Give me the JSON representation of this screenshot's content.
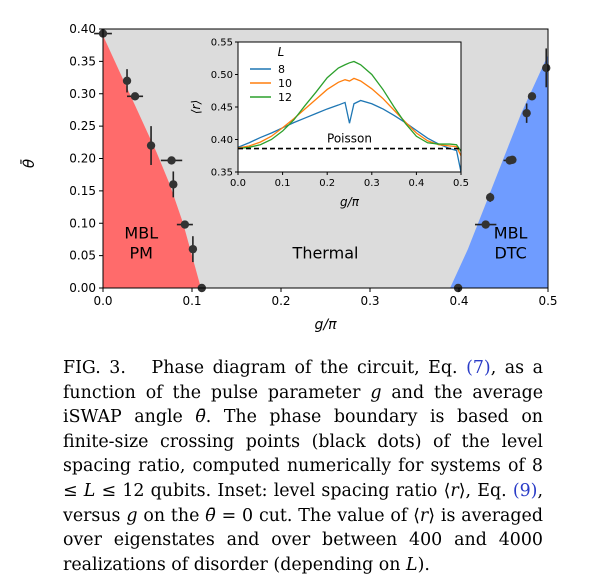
{
  "chart_data": [
    {
      "type": "scatter",
      "title": "",
      "xlabel": "g/π",
      "ylabel": "θ̄",
      "xlim": [
        0.0,
        0.5
      ],
      "ylim": [
        0.0,
        0.4
      ],
      "xticks": [
        "0.0",
        "0.1",
        "0.2",
        "0.3",
        "0.4",
        "0.5"
      ],
      "yticks": [
        "0.00",
        "0.05",
        "0.10",
        "0.15",
        "0.20",
        "0.25",
        "0.30",
        "0.35",
        "0.40"
      ],
      "background_color": "#dcdcdc",
      "regions": [
        {
          "name": "MBL PM",
          "label_lines": [
            "MBL",
            "PM"
          ],
          "color": "#ff6b6b"
        },
        {
          "name": "Thermal",
          "label_lines": [
            "Thermal"
          ],
          "color": "#dcdcdc"
        },
        {
          "name": "MBL DTC",
          "label_lines": [
            "MBL",
            "DTC"
          ],
          "color": "#6f9cff"
        }
      ],
      "pm_boundary": [
        [
          0.0,
          0.39
        ],
        [
          0.02,
          0.33
        ],
        [
          0.04,
          0.27
        ],
        [
          0.06,
          0.21
        ],
        [
          0.075,
          0.16
        ],
        [
          0.09,
          0.1
        ],
        [
          0.1,
          0.05
        ],
        [
          0.11,
          0.0
        ]
      ],
      "dtc_boundary": [
        [
          0.39,
          0.0
        ],
        [
          0.41,
          0.06
        ],
        [
          0.43,
          0.13
        ],
        [
          0.45,
          0.2
        ],
        [
          0.47,
          0.27
        ],
        [
          0.49,
          0.33
        ],
        [
          0.5,
          0.36
        ]
      ],
      "points": [
        {
          "x": 0.0,
          "y": 0.393,
          "xerr": 0.01,
          "yerr": 0.0
        },
        {
          "x": 0.027,
          "y": 0.32,
          "xerr": 0.0,
          "yerr": 0.018
        },
        {
          "x": 0.036,
          "y": 0.296,
          "xerr": 0.009,
          "yerr": 0.0
        },
        {
          "x": 0.054,
          "y": 0.22,
          "xerr": 0.0,
          "yerr": 0.03
        },
        {
          "x": 0.077,
          "y": 0.197,
          "xerr": 0.012,
          "yerr": 0.0
        },
        {
          "x": 0.079,
          "y": 0.16,
          "xerr": 0.0,
          "yerr": 0.02
        },
        {
          "x": 0.092,
          "y": 0.098,
          "xerr": 0.009,
          "yerr": 0.0
        },
        {
          "x": 0.101,
          "y": 0.06,
          "xerr": 0.0,
          "yerr": 0.02
        },
        {
          "x": 0.111,
          "y": 0.0,
          "xerr": 0.0,
          "yerr": 0.0
        },
        {
          "x": 0.399,
          "y": 0.0,
          "xerr": 0.0,
          "yerr": 0.0
        },
        {
          "x": 0.43,
          "y": 0.098,
          "xerr": 0.012,
          "yerr": 0.0
        },
        {
          "x": 0.435,
          "y": 0.14,
          "xerr": 0.0,
          "yerr": 0.007
        },
        {
          "x": 0.457,
          "y": 0.197,
          "xerr": 0.007,
          "yerr": 0.0
        },
        {
          "x": 0.46,
          "y": 0.198,
          "xerr": 0.0,
          "yerr": 0.0
        },
        {
          "x": 0.476,
          "y": 0.27,
          "xerr": 0.0,
          "yerr": 0.015
        },
        {
          "x": 0.482,
          "y": 0.296,
          "xerr": 0.0,
          "yerr": 0.0
        },
        {
          "x": 0.498,
          "y": 0.34,
          "xerr": 0.0,
          "yerr": 0.03
        }
      ]
    },
    {
      "type": "line",
      "title": "",
      "xlabel": "g/π",
      "ylabel": "⟨r⟩",
      "xlim": [
        0.0,
        0.5
      ],
      "ylim": [
        0.35,
        0.55
      ],
      "xticks": [
        "0.0",
        "0.1",
        "0.2",
        "0.3",
        "0.4",
        "0.5"
      ],
      "yticks": [
        "0.35",
        "0.40",
        "0.45",
        "0.50",
        "0.55"
      ],
      "legend_title": "L",
      "legend_position": "top-left",
      "x": [
        0.0,
        0.025,
        0.05,
        0.075,
        0.1,
        0.125,
        0.15,
        0.175,
        0.2,
        0.225,
        0.24,
        0.25,
        0.26,
        0.275,
        0.3,
        0.325,
        0.35,
        0.375,
        0.4,
        0.425,
        0.45,
        0.475,
        0.49,
        0.5
      ],
      "series": [
        {
          "name": "8",
          "color": "#1f77b4",
          "values": [
            0.388,
            0.395,
            0.403,
            0.41,
            0.418,
            0.426,
            0.433,
            0.44,
            0.447,
            0.453,
            0.457,
            0.425,
            0.455,
            0.46,
            0.455,
            0.447,
            0.437,
            0.426,
            0.414,
            0.402,
            0.393,
            0.386,
            0.383,
            0.35
          ]
        },
        {
          "name": "10",
          "color": "#ff7f0e",
          "values": [
            0.387,
            0.39,
            0.396,
            0.405,
            0.418,
            0.432,
            0.447,
            0.462,
            0.477,
            0.488,
            0.492,
            0.49,
            0.494,
            0.49,
            0.478,
            0.463,
            0.445,
            0.427,
            0.41,
            0.398,
            0.392,
            0.39,
            0.389,
            0.375
          ]
        },
        {
          "name": "12",
          "color": "#2ca02c",
          "values": [
            0.386,
            0.388,
            0.392,
            0.4,
            0.413,
            0.43,
            0.452,
            0.473,
            0.495,
            0.51,
            0.515,
            0.518,
            0.52,
            0.515,
            0.5,
            0.477,
            0.45,
            0.425,
            0.405,
            0.395,
            0.393,
            0.393,
            0.392,
            0.382
          ]
        }
      ],
      "reference_line": {
        "name": "Poisson",
        "y": 0.386,
        "style": "dashed",
        "color": "#000000"
      }
    }
  ],
  "caption": {
    "fig_label": "FIG. 3.",
    "t1": "Phase diagram of the circuit, Eq. ",
    "ref1": "(7)",
    "t2": ", as a function of the pulse parameter ",
    "g": "g",
    "t3": " and the average i",
    "swap": "SWAP",
    "t4": " angle ",
    "theta_bar": "θ̄",
    "t5": ". The phase boundary is based on finite-size crossing points (black dots) of the level spacing ratio, computed numerically for systems of 8 ≤ ",
    "L1": "L",
    "t6": " ≤ 12 qubits. Inset: level spacing ratio ⟨",
    "r1": "r",
    "t7": "⟩, Eq. ",
    "ref2": "(9)",
    "t8": ", versus ",
    "g2": "g",
    "t9": " on the ",
    "theta_bar2": "θ̄",
    "t10": " = 0 cut. The value of ⟨",
    "r2": "r",
    "t11": "⟩ is averaged over eigenstates and over between 400 and 4000 realizations of disorder (depending on ",
    "L2": "L",
    "t12": ")."
  }
}
